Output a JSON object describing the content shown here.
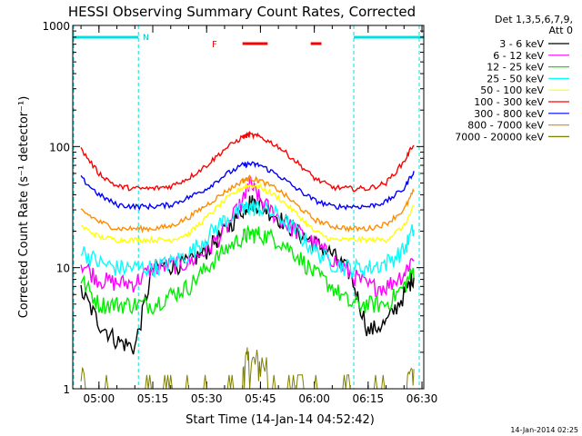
{
  "chart_data": {
    "type": "line",
    "title": "HESSI Observing Summary Count Rates, Corrected",
    "xlabel": "Start Time (14-Jan-14 04:52:42)",
    "ylabel": "Corrected Count Rate (s⁻¹ detector⁻¹)",
    "y_scale": "log",
    "ylim": [
      1,
      1000
    ],
    "y_ticks": [
      "1",
      "10",
      "100",
      "1000"
    ],
    "xlim": [
      "04:52:42",
      "06:30:30"
    ],
    "x_ticks": [
      "05:00",
      "05:15",
      "05:30",
      "05:45",
      "06:00",
      "06:15",
      "06:30"
    ],
    "legend": {
      "placement": "right-outside",
      "header": [
        "Det 1,3,5,6,7,9,",
        "Att 0"
      ]
    },
    "attenuator_state": "0",
    "footer_date": "14-Jan-2014 02:25",
    "flags": {
      "N_label": "N",
      "F_label": "F",
      "night_intervals": [
        [
          "04:52:42",
          "05:11:00"
        ],
        [
          "06:11:00",
          "06:30:30"
        ]
      ],
      "flare_intervals": [
        [
          "05:40:00",
          "05:47:00"
        ],
        [
          "05:59:00",
          "06:02:00"
        ]
      ],
      "colors": {
        "night": "#00e0e0",
        "flare": "#ff0000"
      }
    },
    "x_times": [
      "04:55",
      "05:00",
      "05:05",
      "05:10",
      "05:15",
      "05:20",
      "05:25",
      "05:30",
      "05:35",
      "05:40",
      "05:42",
      "05:45",
      "05:50",
      "05:55",
      "06:00",
      "06:05",
      "06:10",
      "06:15",
      "06:20",
      "06:25",
      "06:28"
    ],
    "series": [
      {
        "name": "3 - 6 keV",
        "color": "#000000",
        "values": [
          6.5,
          3.5,
          2.5,
          2.2,
          10,
          10.5,
          11,
          14,
          20,
          30,
          35,
          33,
          26,
          20,
          16,
          13,
          9,
          3,
          3.5,
          6,
          9
        ]
      },
      {
        "name": "6 - 12 keV",
        "color": "#ff00ff",
        "values": [
          11,
          8,
          7.5,
          7.5,
          10,
          10.5,
          11,
          14,
          20,
          35,
          50,
          36,
          26,
          20,
          16,
          12,
          9,
          7,
          7,
          9,
          13
        ]
      },
      {
        "name": "12 - 25 keV",
        "color": "#00ee00",
        "values": [
          8,
          5,
          5,
          5,
          5,
          6,
          7,
          10,
          14,
          18,
          19,
          19,
          17,
          13,
          9,
          7,
          5,
          5,
          5,
          7,
          10
        ]
      },
      {
        "name": "25 - 50 keV",
        "color": "#00ffff",
        "values": [
          14,
          11,
          10,
          10,
          10,
          11,
          13,
          18,
          25,
          30,
          32,
          31,
          27,
          20,
          14,
          11,
          10,
          10,
          11,
          14,
          22
        ]
      },
      {
        "name": "50 - 100 keV",
        "color": "#ffff00",
        "values": [
          22,
          18,
          17,
          17,
          17,
          17,
          19,
          26,
          36,
          46,
          48,
          46,
          38,
          28,
          20,
          17,
          17,
          17,
          17,
          22,
          33
        ]
      },
      {
        "name": "100 - 300 keV",
        "color": "#ff0000",
        "values": [
          95,
          60,
          47,
          45,
          45,
          47,
          55,
          70,
          95,
          120,
          125,
          120,
          100,
          75,
          55,
          46,
          45,
          45,
          50,
          75,
          110
        ]
      },
      {
        "name": "300 - 800 keV",
        "color": "#0000ff",
        "values": [
          55,
          40,
          33,
          32,
          32,
          33,
          38,
          45,
          58,
          70,
          72,
          70,
          58,
          45,
          36,
          32,
          32,
          32,
          35,
          45,
          65
        ]
      },
      {
        "name": "800 - 7000 keV",
        "color": "#ff8c00",
        "values": [
          30,
          24,
          21,
          21,
          21,
          22,
          26,
          33,
          42,
          52,
          55,
          52,
          44,
          33,
          25,
          22,
          21,
          21,
          23,
          30,
          45
        ]
      },
      {
        "name": "7000 - 20000 keV",
        "color": "#808000",
        "values": [
          1,
          1,
          1,
          1,
          1,
          1,
          1,
          1,
          1.4,
          1.8,
          2.2,
          1.8,
          1.4,
          1,
          1,
          1,
          1,
          1,
          1,
          1,
          1.4
        ]
      }
    ]
  }
}
